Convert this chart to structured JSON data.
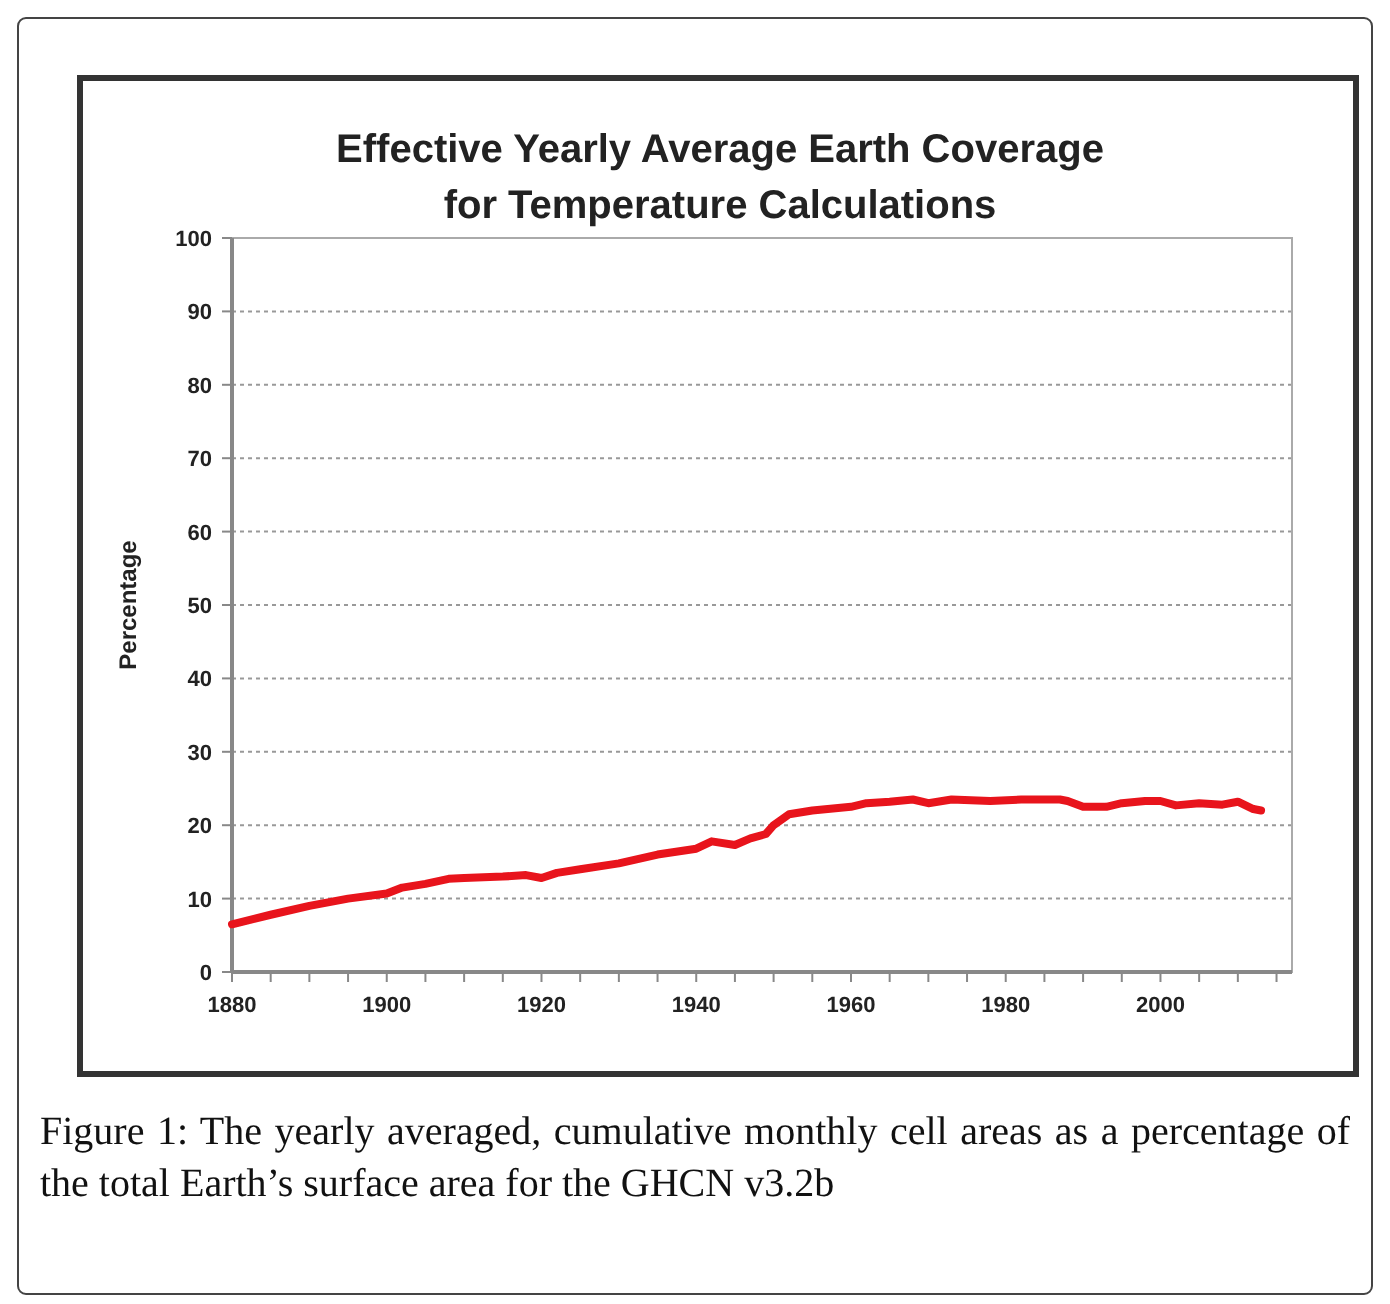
{
  "chart_data": {
    "type": "line",
    "title": "Effective Yearly Average Earth Coverage\nfor Temperature Calculations",
    "ylabel": "Percentage",
    "x": [
      1880,
      1885,
      1890,
      1895,
      1900,
      1902,
      1905,
      1908,
      1910,
      1915,
      1918,
      1920,
      1922,
      1925,
      1930,
      1935,
      1940,
      1942,
      1945,
      1947,
      1949,
      1950,
      1952,
      1955,
      1960,
      1962,
      1965,
      1968,
      1970,
      1973,
      1978,
      1982,
      1987,
      1988,
      1990,
      1993,
      1995,
      1998,
      2000,
      2002,
      2005,
      2008,
      2010,
      2012,
      2013
    ],
    "series": [
      {
        "color": "#e8141c",
        "values": [
          6.5,
          7.8,
          9,
          10,
          10.7,
          11.5,
          12,
          12.7,
          12.8,
          13,
          13.2,
          12.8,
          13.5,
          14,
          14.8,
          16,
          16.8,
          17.8,
          17.3,
          18.2,
          18.8,
          20,
          21.5,
          22,
          22.5,
          23,
          23.2,
          23.5,
          23,
          23.5,
          23.3,
          23.5,
          23.5,
          23.3,
          22.5,
          22.5,
          23,
          23.3,
          23.3,
          22.7,
          23,
          22.8,
          23.2,
          22.2,
          22
        ]
      }
    ],
    "xlim": [
      1880,
      2017
    ],
    "xticks": [
      1880,
      1900,
      1920,
      1940,
      1960,
      1980,
      2000
    ],
    "ylim": [
      0,
      100
    ],
    "yticks": [
      0,
      10,
      20,
      30,
      40,
      50,
      60,
      70,
      80,
      90,
      100
    ],
    "grid": "y",
    "marker": "none",
    "line_style": "solid",
    "annotations": [
      "Figure 1: The yearly averaged, cumulative monthly cell areas as a percentage of the total Earth’s surface area for the GHCN v3.2b"
    ]
  }
}
